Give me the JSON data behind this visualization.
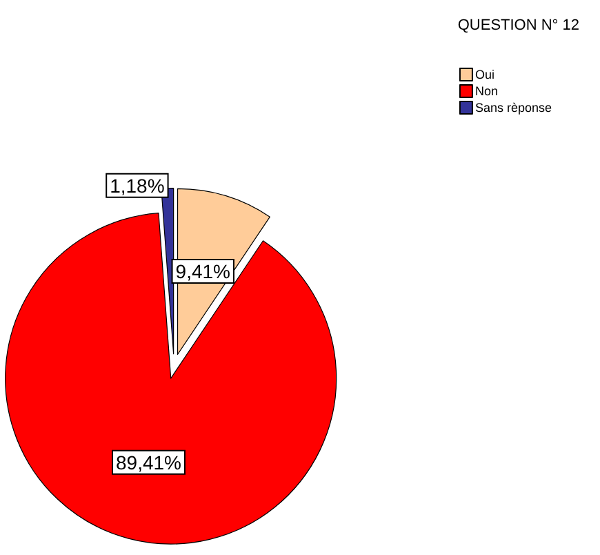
{
  "chart_data": {
    "type": "pie",
    "title": "QUESTION N° 12",
    "categories": [
      "Oui",
      "Non",
      "Sans rèponse"
    ],
    "values": [
      9.41,
      89.41,
      1.18
    ],
    "value_labels": [
      "9,41%",
      "89,41%",
      "1,18%"
    ],
    "colors": [
      "#ffcc99",
      "#ff0000",
      "#333399"
    ],
    "legend": "top right"
  }
}
